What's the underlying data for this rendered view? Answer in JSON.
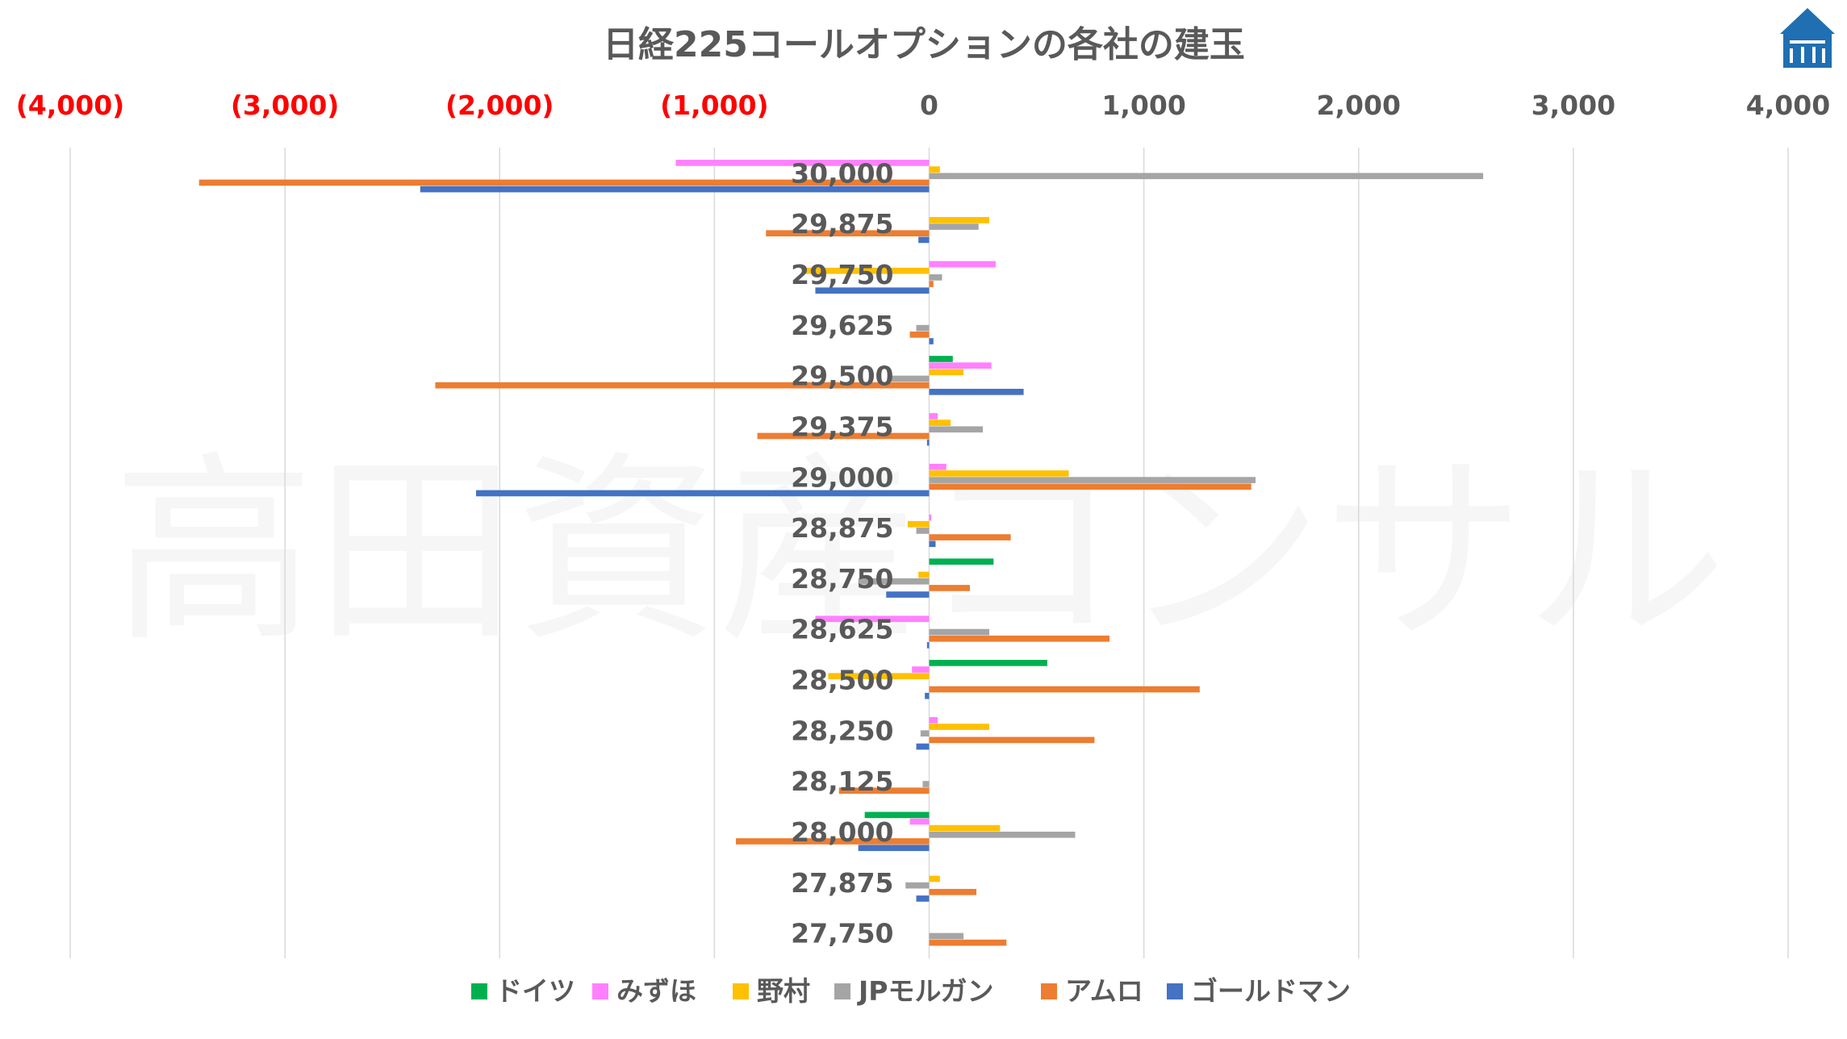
{
  "watermark": "高田資産コンサル",
  "chart_data": {
    "type": "bar",
    "orientation": "horizontal",
    "title": "日経225コールオプションの各社の建玉",
    "xlim": [
      -4000,
      4000
    ],
    "x_ticks": [
      -4000,
      -3000,
      -2000,
      -1000,
      0,
      1000,
      2000,
      3000,
      4000
    ],
    "x_tick_labels": [
      "(4,000)",
      "(3,000)",
      "(2,000)",
      "(1,000)",
      "0",
      "1,000",
      "2,000",
      "3,000",
      "4,000"
    ],
    "negative_tick_color": "#ff0000",
    "grid": "vertical",
    "legend_position": "bottom",
    "categories": [
      "30,000",
      "29,875",
      "29,750",
      "29,625",
      "29,500",
      "29,375",
      "29,000",
      "28,875",
      "28,750",
      "28,625",
      "28,500",
      "28,250",
      "28,125",
      "28,000",
      "27,875",
      "27,750"
    ],
    "series": [
      {
        "name": "ドイツ",
        "color": "#00b050",
        "values": [
          0,
          0,
          0,
          0,
          110,
          0,
          0,
          0,
          300,
          0,
          550,
          0,
          0,
          -300,
          0,
          0
        ]
      },
      {
        "name": "みずほ",
        "color": "#ff80ff",
        "values": [
          -1180,
          0,
          310,
          0,
          290,
          40,
          80,
          10,
          0,
          -530,
          -80,
          40,
          0,
          -90,
          0,
          0
        ]
      },
      {
        "name": "野村",
        "color": "#ffc000",
        "values": [
          50,
          280,
          -580,
          0,
          160,
          100,
          650,
          -100,
          -50,
          0,
          -470,
          280,
          0,
          330,
          50,
          0
        ]
      },
      {
        "name": "JPモルガン",
        "color": "#a5a5a5",
        "values": [
          2580,
          230,
          60,
          -60,
          -180,
          250,
          1520,
          -60,
          -330,
          280,
          0,
          -40,
          -30,
          680,
          -110,
          160
        ]
      },
      {
        "name": "アムロ",
        "color": "#ed7d31",
        "values": [
          -3400,
          -760,
          20,
          -90,
          -2300,
          -800,
          1500,
          380,
          190,
          840,
          1260,
          770,
          -420,
          -900,
          220,
          360
        ]
      },
      {
        "name": "ゴールドマン",
        "color": "#4472c4",
        "values": [
          -2370,
          -50,
          -530,
          20,
          440,
          -10,
          -2110,
          30,
          -200,
          -10,
          -20,
          -60,
          0,
          -330,
          -60,
          0
        ]
      }
    ]
  }
}
